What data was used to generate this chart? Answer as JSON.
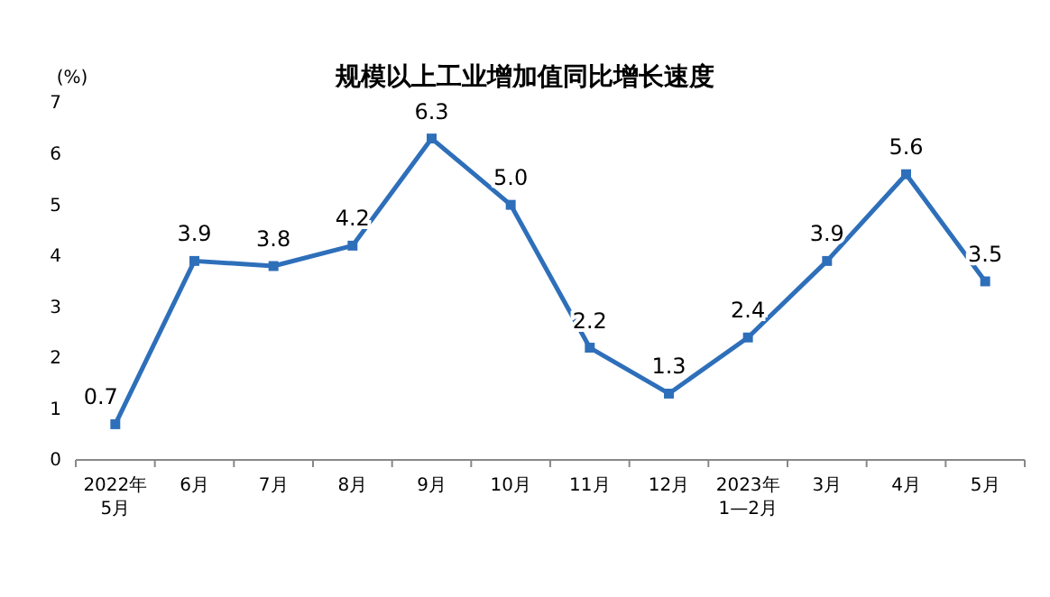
{
  "chart_data": {
    "type": "line",
    "title": "规模以上工业增加值同比增长速度",
    "ylabel": "(%)",
    "categories": [
      "2022年\n5月",
      "6月",
      "7月",
      "8月",
      "9月",
      "10月",
      "11月",
      "12月",
      "2023年\n1—2月",
      "3月",
      "4月",
      "5月"
    ],
    "series": [
      {
        "color": "#2e6fba",
        "values": [
          0.7,
          3.9,
          3.8,
          4.2,
          6.3,
          5.0,
          2.2,
          1.3,
          2.4,
          3.9,
          5.6,
          3.5
        ],
        "value_labels": [
          "0.7",
          "3.9",
          "3.8",
          "4.2",
          "6.3",
          "5.0",
          "2.2",
          "1.3",
          "2.4",
          "3.9",
          "5.6",
          "3.5"
        ]
      }
    ],
    "ylim": [
      0,
      7
    ],
    "yticks": [
      0,
      1,
      2,
      3,
      4,
      5,
      6,
      7
    ],
    "marker": "square"
  }
}
